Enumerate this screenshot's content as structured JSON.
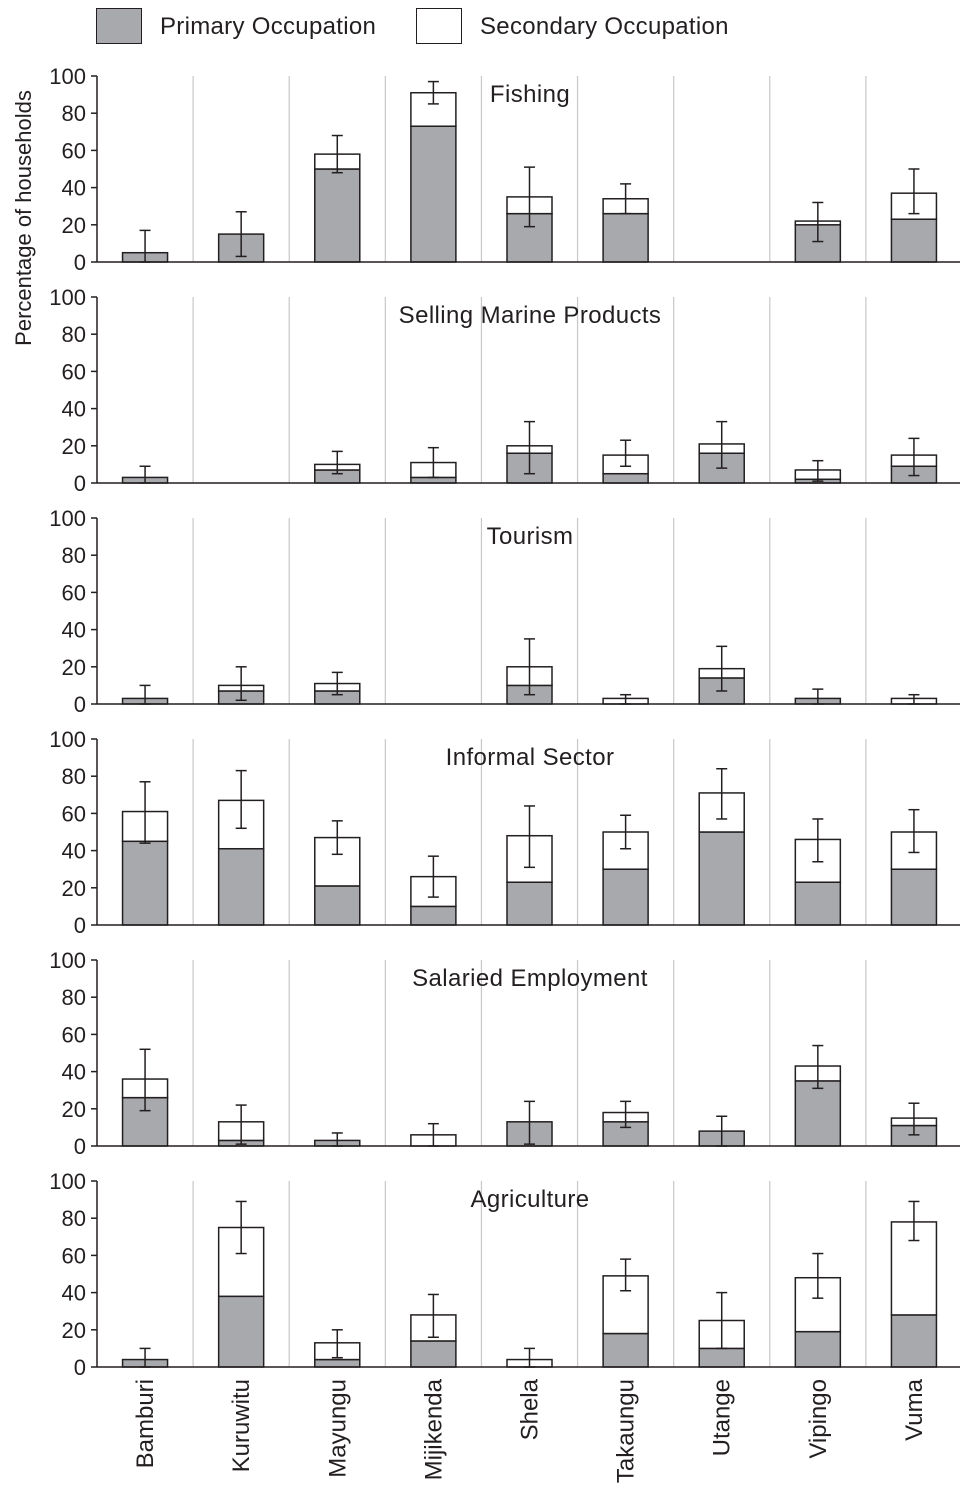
{
  "legend": {
    "primary_label": "Primary Occupation",
    "secondary_label": "Secondary Occupation"
  },
  "colors": {
    "primary": "#a7a9ac",
    "secondary": "#ffffff",
    "outline": "#231f20",
    "grid": "#c8c8c8"
  },
  "chart_data": {
    "type": "bar",
    "stacked": true,
    "ylabel": "Percentage of households",
    "ylim": [
      0,
      100
    ],
    "yticks": [
      0,
      20,
      40,
      60,
      80,
      100
    ],
    "grid": "vertical",
    "legend_position": "top-left",
    "categories": [
      "Bamburi",
      "Kuruwitu",
      "Mayungu",
      "Mijikenda",
      "Shela",
      "Takaungu",
      "Utange",
      "Vipingo",
      "Vuma"
    ],
    "panels": [
      {
        "title": "Fishing",
        "series": [
          {
            "name": "Primary Occupation",
            "values": [
              5,
              15,
              50,
              73,
              26,
              26,
              0,
              20,
              23
            ]
          },
          {
            "name": "Secondary Occupation",
            "values": [
              0,
              0,
              8,
              18,
              9,
              8,
              0,
              2,
              14
            ]
          }
        ],
        "error_bars": [
          [
            0,
            17
          ],
          [
            3,
            27
          ],
          [
            48,
            68
          ],
          [
            85,
            97
          ],
          [
            19,
            51
          ],
          [
            26,
            42
          ],
          null,
          [
            11,
            32
          ],
          [
            26,
            50
          ]
        ]
      },
      {
        "title": "Selling Marine Products",
        "series": [
          {
            "name": "Primary Occupation",
            "values": [
              3,
              0,
              7,
              3,
              16,
              5,
              16,
              2,
              9
            ]
          },
          {
            "name": "Secondary Occupation",
            "values": [
              0,
              0,
              3,
              8,
              4,
              10,
              5,
              5,
              6
            ]
          }
        ],
        "error_bars": [
          [
            0,
            9
          ],
          null,
          [
            5,
            17
          ],
          [
            3,
            19
          ],
          [
            5,
            33
          ],
          [
            9,
            23
          ],
          [
            8,
            33
          ],
          [
            1,
            12
          ],
          [
            4,
            24
          ]
        ]
      },
      {
        "title": "Tourism",
        "series": [
          {
            "name": "Primary Occupation",
            "values": [
              3,
              7,
              7,
              0,
              10,
              0,
              14,
              3,
              0
            ]
          },
          {
            "name": "Secondary Occupation",
            "values": [
              0,
              3,
              4,
              0,
              10,
              3,
              5,
              0,
              3
            ]
          }
        ],
        "error_bars": [
          [
            0,
            10
          ],
          [
            2,
            20
          ],
          [
            5,
            17
          ],
          null,
          [
            5,
            35
          ],
          [
            0,
            5
          ],
          [
            7,
            31
          ],
          [
            0,
            8
          ],
          [
            0,
            5
          ]
        ]
      },
      {
        "title": "Informal Sector",
        "series": [
          {
            "name": "Primary Occupation",
            "values": [
              45,
              41,
              21,
              10,
              23,
              30,
              50,
              23,
              30
            ]
          },
          {
            "name": "Secondary Occupation",
            "values": [
              16,
              26,
              26,
              16,
              25,
              20,
              21,
              23,
              20
            ]
          }
        ],
        "error_bars": [
          [
            44,
            77
          ],
          [
            52,
            83
          ],
          [
            38,
            56
          ],
          [
            15,
            37
          ],
          [
            31,
            64
          ],
          [
            41,
            59
          ],
          [
            57,
            84
          ],
          [
            34,
            57
          ],
          [
            39,
            62
          ]
        ]
      },
      {
        "title": "Salaried Employment",
        "series": [
          {
            "name": "Primary Occupation",
            "values": [
              26,
              3,
              3,
              0,
              13,
              13,
              8,
              35,
              11
            ]
          },
          {
            "name": "Secondary Occupation",
            "values": [
              10,
              10,
              0,
              6,
              0,
              5,
              0,
              8,
              4
            ]
          }
        ],
        "error_bars": [
          [
            19,
            52
          ],
          [
            1,
            22
          ],
          [
            0,
            7
          ],
          [
            0,
            12
          ],
          [
            1,
            24
          ],
          [
            10,
            24
          ],
          [
            0,
            16
          ],
          [
            31,
            54
          ],
          [
            6,
            23
          ]
        ]
      },
      {
        "title": "Agriculture",
        "series": [
          {
            "name": "Primary Occupation",
            "values": [
              4,
              38,
              4,
              14,
              0,
              18,
              10,
              19,
              28
            ]
          },
          {
            "name": "Secondary Occupation",
            "values": [
              0,
              37,
              9,
              14,
              4,
              31,
              15,
              29,
              50
            ]
          }
        ],
        "error_bars": [
          [
            0,
            10
          ],
          [
            61,
            89
          ],
          [
            5,
            20
          ],
          [
            16,
            39
          ],
          [
            0,
            10
          ],
          [
            41,
            58
          ],
          [
            10,
            40
          ],
          [
            37,
            61
          ],
          [
            68,
            89
          ]
        ]
      }
    ]
  }
}
